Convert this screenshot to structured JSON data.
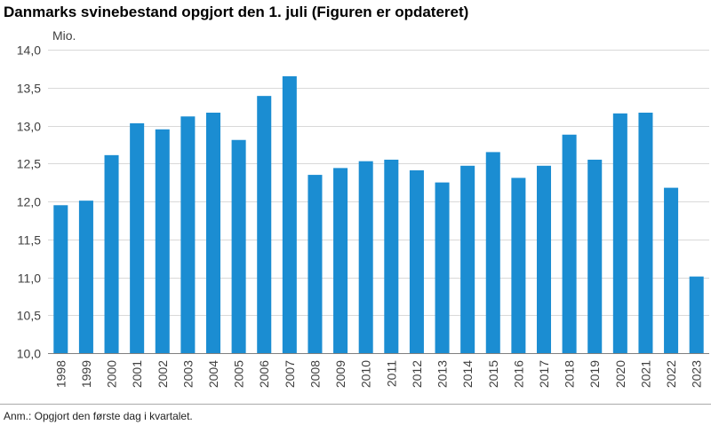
{
  "chart_data": {
    "type": "bar",
    "title": "Danmarks svinebestand opgjort den 1. juli (Figuren er opdateret)",
    "ylabel": "Mio.",
    "xlabel": "",
    "ylim": [
      10.0,
      14.0
    ],
    "yticks": [
      "10,0",
      "10,5",
      "11,0",
      "11,5",
      "12,0",
      "12,5",
      "13,0",
      "13,5",
      "14,0"
    ],
    "ytick_values": [
      10.0,
      10.5,
      11.0,
      11.5,
      12.0,
      12.5,
      13.0,
      13.5,
      14.0
    ],
    "grid": true,
    "bar_color": "#1B8DD2",
    "categories": [
      "1998",
      "1999",
      "2000",
      "2001",
      "2002",
      "2003",
      "2004",
      "2005",
      "2006",
      "2007",
      "2008",
      "2009",
      "2010",
      "2011",
      "2012",
      "2013",
      "2014",
      "2015",
      "2016",
      "2017",
      "2018",
      "2019",
      "2020",
      "2021",
      "2022",
      "2023"
    ],
    "values": [
      11.95,
      12.01,
      12.61,
      13.03,
      12.95,
      13.12,
      13.17,
      12.81,
      13.39,
      13.65,
      12.35,
      12.44,
      12.53,
      12.55,
      12.41,
      12.25,
      12.47,
      12.65,
      12.31,
      12.47,
      12.88,
      12.55,
      13.16,
      13.17,
      12.18,
      11.01
    ]
  },
  "note": "Anm.: Opgjort den første dag i kvartalet."
}
